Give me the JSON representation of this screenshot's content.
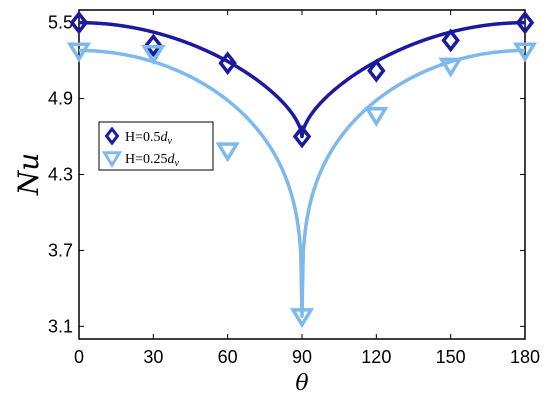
{
  "chart_data": {
    "type": "line",
    "xlabel": "θ",
    "ylabel": "Nu",
    "xlim": [
      0,
      180
    ],
    "ylim": [
      3.0,
      5.6
    ],
    "xticks": [
      "0",
      "30",
      "60",
      "90",
      "120",
      "150",
      "180"
    ],
    "xtick_values": [
      0,
      30,
      60,
      90,
      120,
      150,
      180
    ],
    "yticks": [
      "3.1",
      "3.7",
      "4.3",
      "4.9",
      "5.5"
    ],
    "ytick_values": [
      3.1,
      3.7,
      4.3,
      4.9,
      5.5
    ],
    "grid": false,
    "legend_position": "middle-left",
    "series": [
      {
        "name_main": "H=0.5",
        "name_sub": "d",
        "name_subscript": "v",
        "marker": "diamond",
        "color": "#1a1aa0",
        "points_x": [
          0,
          30,
          60,
          90,
          120,
          150,
          180
        ],
        "points_y": [
          5.5,
          5.32,
          5.18,
          4.6,
          5.12,
          5.36,
          5.5
        ],
        "fit_base": 4.6,
        "fit_peak": 5.5,
        "fit_exponent": 0.6
      },
      {
        "name_main": "H=0.25",
        "name_sub": "d",
        "name_subscript": "v",
        "marker": "triangle-down",
        "color": "#7db9ec",
        "points_x": [
          0,
          30,
          60,
          90,
          120,
          150,
          180
        ],
        "points_y": [
          5.28,
          5.26,
          4.49,
          3.18,
          4.77,
          5.16,
          5.28
        ],
        "fit_base": 3.18,
        "fit_peak": 5.28,
        "fit_exponent": 0.3
      }
    ]
  }
}
